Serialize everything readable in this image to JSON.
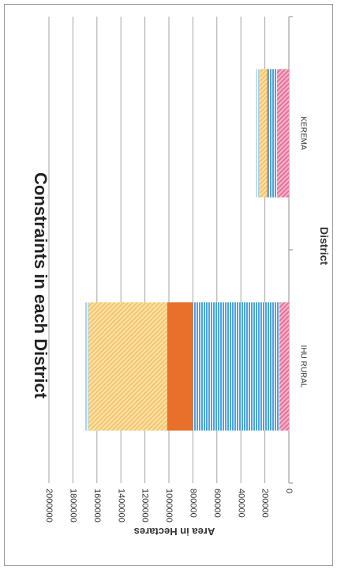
{
  "chart_data": {
    "type": "bar",
    "stacked": true,
    "orientation": "horizontal",
    "rotated": "90deg-clockwise",
    "title": "Constraints in each District",
    "xlabel": "District",
    "ylabel": "Area in Hectares",
    "ylim": [
      0,
      2000000
    ],
    "yticks": [
      "0",
      "200000",
      "400000",
      "600000",
      "800000",
      "1000000",
      "1200000",
      "1400000",
      "1600000",
      "1800000",
      "2000000"
    ],
    "categories": [
      "IHU RURAL",
      "KEREMA"
    ],
    "grid": true,
    "legend": "none",
    "series": [
      {
        "color": "#e8709a",
        "pattern": "diagonal-hatch",
        "values": [
          80000,
          100000
        ]
      },
      {
        "color": "#4aa3e0",
        "pattern": "stripes",
        "values": [
          720000,
          70000
        ]
      },
      {
        "color": "#e8702a",
        "pattern": "solid",
        "values": [
          215000,
          12000
        ]
      },
      {
        "color": "#f5c56a",
        "pattern": "diagonal-hatch",
        "values": [
          655000,
          63000
        ]
      },
      {
        "color": "#a8d4f0",
        "pattern": "stripes",
        "values": [
          30000,
          28000
        ]
      }
    ]
  }
}
